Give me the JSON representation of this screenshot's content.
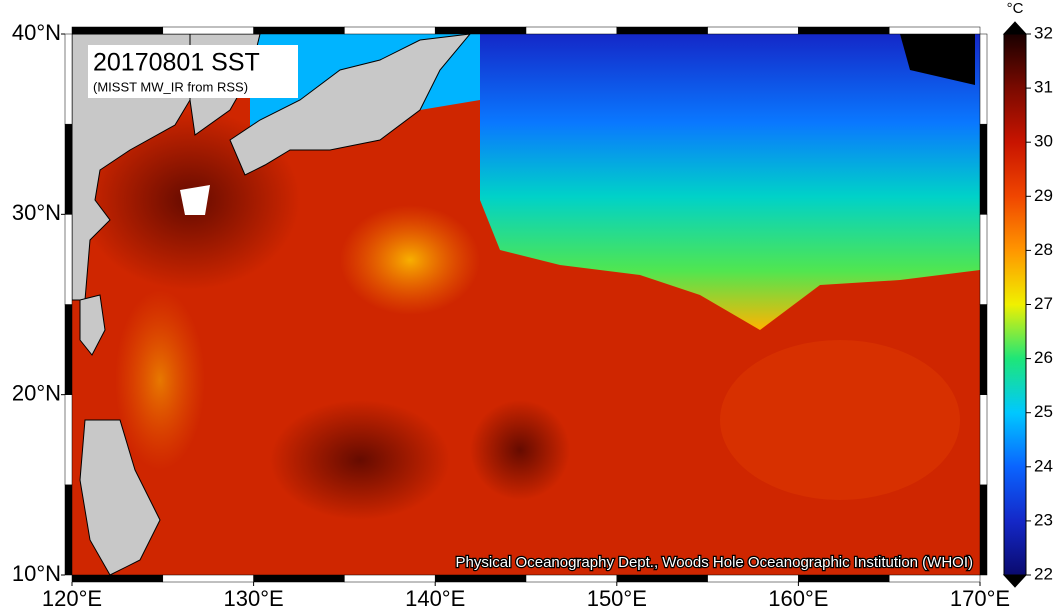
{
  "map": {
    "title": "20170801 SST",
    "subtitle": "(MISST MW_IR from RSS)",
    "credit": "Physical Oceanography Dept., Woods Hole Oceanographic Institution (WHOI)",
    "xlim": [
      120,
      170
    ],
    "ylim": [
      10,
      40
    ],
    "xticks": [
      {
        "value": 120,
        "label": "120°E"
      },
      {
        "value": 130,
        "label": "130°E"
      },
      {
        "value": 140,
        "label": "140°E"
      },
      {
        "value": 150,
        "label": "150°E"
      },
      {
        "value": 160,
        "label": "160°E"
      },
      {
        "value": 170,
        "label": "170°E"
      }
    ],
    "yticks": [
      {
        "value": 10,
        "label": "10°N"
      },
      {
        "value": 20,
        "label": "20°N"
      },
      {
        "value": 30,
        "label": "30°N"
      },
      {
        "value": 40,
        "label": "40°N"
      }
    ],
    "colorbar": {
      "unit": "°C",
      "range": [
        22,
        32
      ],
      "ticks": [
        22,
        23,
        24,
        25,
        26,
        27,
        28,
        29,
        30,
        31,
        32
      ]
    }
  }
}
